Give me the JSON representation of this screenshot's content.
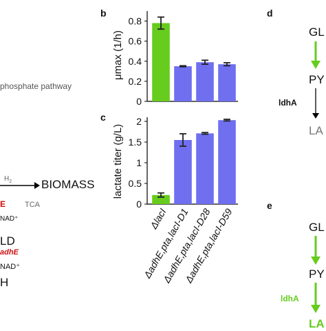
{
  "left": {
    "pathway": "phosphate pathway",
    "h2": "H",
    "h2_sub": "2",
    "biomass": "BIOMASS",
    "e_red": "E",
    "tca": "TCA",
    "nad_top": "NAD⁺",
    "ld": "LD",
    "adhe": "adhE",
    "nad_bottom": "NAD⁺",
    "h": "H"
  },
  "panels": {
    "b": "b",
    "c": "c",
    "d": "d",
    "e": "e"
  },
  "right": {
    "d_gl": "GL",
    "d_py": "PY",
    "d_ldha": "ldhA",
    "d_la": "LA",
    "e_gl": "GL",
    "e_py": "PY",
    "e_ldha": "ldhA",
    "e_la": "LA"
  },
  "colors": {
    "green": "#66cc1e",
    "blue": "#6f6ff0",
    "red": "#cc1111",
    "gray": "#777777"
  },
  "chart_data": [
    {
      "panel": "b",
      "type": "bar",
      "ylabel": "μmax (1/h)",
      "ylim": [
        0,
        0.9
      ],
      "yticks": [
        "0",
        "0.2",
        "0.4",
        "0.6",
        "0.8"
      ],
      "values": [
        0.78,
        0.35,
        0.39,
        0.37
      ],
      "errors": [
        0.06,
        0.005,
        0.02,
        0.015
      ],
      "colors": [
        "#66cc1e",
        "#6f6ff0",
        "#6f6ff0",
        "#6f6ff0"
      ]
    },
    {
      "panel": "c",
      "type": "bar",
      "ylabel": "lactate titer (g/L)",
      "ylim": [
        0,
        2.1
      ],
      "yticks": [
        "0",
        "0.5",
        "1",
        "1.5",
        "2"
      ],
      "categories": [
        "ΔlacI",
        "ΔadhE,pta,lacI-D1",
        "ΔadhE,pta,lacI-D28",
        "ΔadhE,pta,lacI-D59"
      ],
      "values": [
        0.22,
        1.55,
        1.71,
        2.03
      ],
      "errors": [
        0.05,
        0.15,
        0.02,
        0.02
      ],
      "colors": [
        "#66cc1e",
        "#6f6ff0",
        "#6f6ff0",
        "#6f6ff0"
      ]
    }
  ]
}
